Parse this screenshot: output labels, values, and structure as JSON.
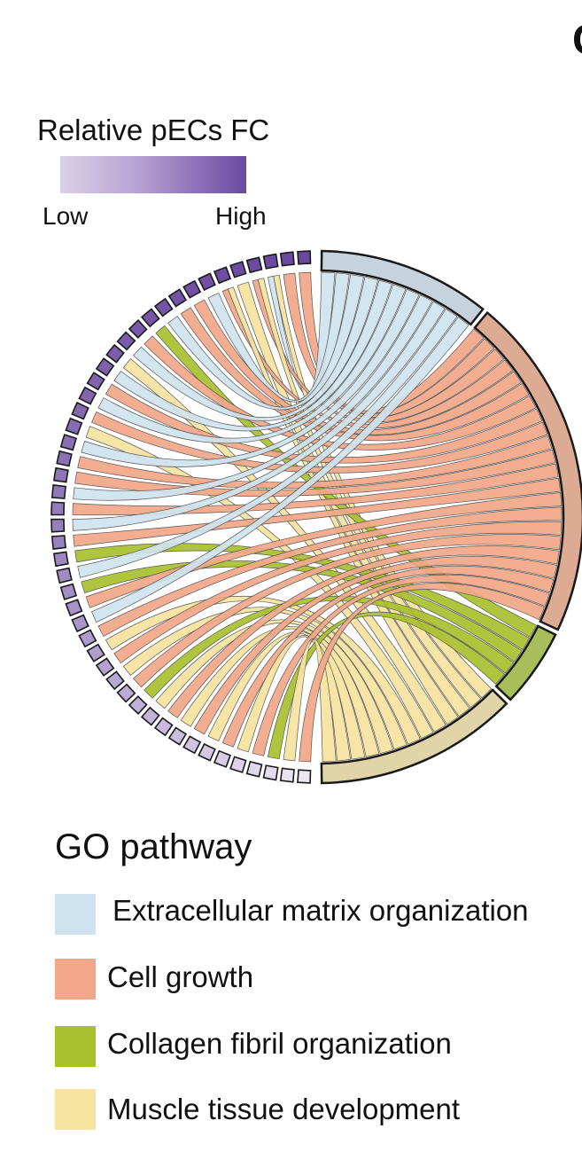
{
  "panel_label": "C",
  "fc_legend": {
    "title": "Relative pECs FC",
    "low_label": "Low",
    "high_label": "High",
    "gradient_colors": [
      "#d9d0e8",
      "#6a4a9f"
    ]
  },
  "go_legend": {
    "title": "GO pathway",
    "items": [
      {
        "label": "Extracellular matrix organization",
        "color": "#cfe3ee"
      },
      {
        "label": "Cell growth",
        "color": "#f2a788"
      },
      {
        "label": "Collagen fibril organization",
        "color": "#a9c02e"
      },
      {
        "label": "Muscle tissue development",
        "color": "#f6e3a0"
      }
    ]
  },
  "chord": {
    "pathway_colors": [
      "#cfe3ee",
      "#f2a788",
      "#a9c02e",
      "#f6e3a0"
    ],
    "sector_colors": [
      "#c6d2dc",
      "#ddaa94",
      "#a9bd5b",
      "#e1d4a8"
    ],
    "gene_count": 48,
    "gene_pathway_links": [
      [
        1
      ],
      [
        1
      ],
      [
        0,
        3
      ],
      [
        1,
        3
      ],
      [
        3
      ],
      [
        1,
        3
      ],
      [
        0
      ],
      [
        1
      ],
      [
        1
      ],
      [
        0
      ],
      [
        2
      ],
      [
        1
      ],
      [
        0
      ],
      [
        3
      ],
      [
        0
      ],
      [
        1
      ],
      [
        0
      ],
      [
        1
      ],
      [
        3
      ],
      [
        0
      ],
      [
        1
      ],
      [
        1
      ],
      [
        0
      ],
      [
        1
      ],
      [
        0
      ],
      [
        1
      ],
      [
        2
      ],
      [
        0
      ],
      [
        2
      ],
      [
        1
      ],
      [
        0
      ],
      [
        1
      ],
      [
        3
      ],
      [
        1
      ],
      [
        3
      ],
      [
        1
      ],
      [
        2
      ],
      [
        3
      ],
      [
        1
      ],
      [
        3
      ],
      [
        1
      ],
      [
        3
      ],
      [
        1
      ],
      [
        3
      ],
      [
        1
      ],
      [
        2
      ],
      [
        3
      ],
      [
        1
      ]
    ]
  }
}
